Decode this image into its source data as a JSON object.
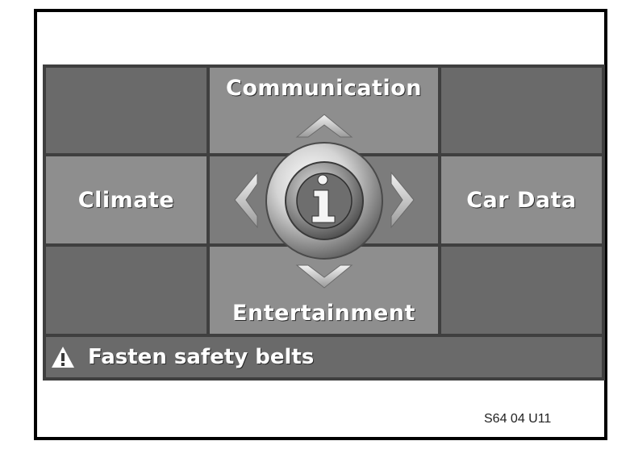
{
  "menu": {
    "top": "Communication",
    "left": "Climate",
    "right": "Car Data",
    "bottom": "Entertainment",
    "center_icon": "info-icon"
  },
  "status": {
    "icon": "warning-icon",
    "message": "Fasten safety belts"
  },
  "figure_code": "S64 04 U11",
  "colors": {
    "screen_background": "#3f3f3f",
    "tile_dark": "#6a6a6a",
    "tile_light": "#8e8e8e",
    "text": "#ffffff"
  }
}
